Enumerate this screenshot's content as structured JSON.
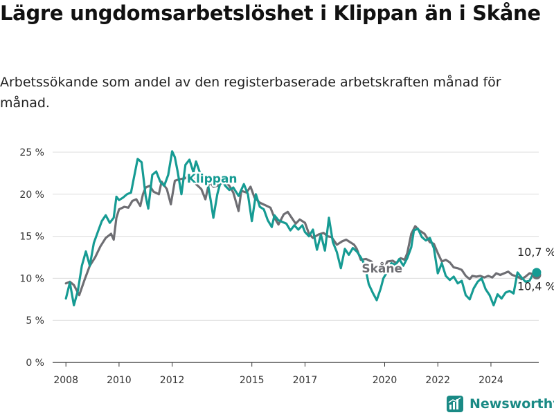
{
  "title": "Lägre ungdomsarbetslöshet i Klippan än i Skåne",
  "subtitle": "Arbetssökande som andel av den registerbaserade arbetskraften månad för månad.",
  "brand": {
    "name": "Newsworthy",
    "icon": "newsworthy-logo-icon",
    "color": "#1a8a85"
  },
  "chart_data": {
    "type": "line",
    "title": "Lägre ungdomsarbetslöshet i Klippan än i Skåne",
    "subtitle": "Arbetssökande som andel av den registerbaserade arbetskraften månad för månad.",
    "xlabel": "",
    "ylabel": "",
    "xlim": [
      2007.5,
      2025.8
    ],
    "ylim": [
      0,
      25
    ],
    "y_ticks": [
      0,
      5,
      10,
      15,
      20,
      25
    ],
    "y_tick_labels": [
      "0 %",
      "5 %",
      "10 %",
      "15 %",
      "20 %",
      "25 %"
    ],
    "x_ticks": [
      2008,
      2010,
      2012,
      2015,
      2017,
      2020,
      2022,
      2024
    ],
    "x_tick_labels": [
      "2008",
      "2010",
      "2012",
      "2015",
      "2017",
      "2020",
      "2022",
      "2024"
    ],
    "grid": true,
    "series": [
      {
        "name": "Skåne",
        "color": "#6e6e73",
        "end_label": "10,4 %",
        "points": [
          [
            2008.0,
            9.4
          ],
          [
            2008.15,
            9.6
          ],
          [
            2008.3,
            9.2
          ],
          [
            2008.5,
            8.0
          ],
          [
            2008.7,
            9.8
          ],
          [
            2008.9,
            11.5
          ],
          [
            2009.1,
            12.5
          ],
          [
            2009.3,
            13.8
          ],
          [
            2009.5,
            14.8
          ],
          [
            2009.7,
            15.3
          ],
          [
            2009.8,
            14.6
          ],
          [
            2009.9,
            17.2
          ],
          [
            2010.0,
            18.2
          ],
          [
            2010.2,
            18.5
          ],
          [
            2010.35,
            18.4
          ],
          [
            2010.5,
            19.2
          ],
          [
            2010.65,
            19.4
          ],
          [
            2010.8,
            18.6
          ],
          [
            2010.9,
            20.0
          ],
          [
            2011.0,
            20.8
          ],
          [
            2011.15,
            21.0
          ],
          [
            2011.3,
            20.3
          ],
          [
            2011.5,
            20.0
          ],
          [
            2011.6,
            21.5
          ],
          [
            2011.8,
            20.6
          ],
          [
            2011.95,
            18.8
          ],
          [
            2012.1,
            21.6
          ],
          [
            2012.3,
            21.8
          ],
          [
            2012.5,
            21.9
          ],
          [
            2012.65,
            22.4
          ],
          [
            2012.8,
            22.0
          ],
          [
            2012.9,
            21.2
          ],
          [
            2013.1,
            20.6
          ],
          [
            2013.25,
            19.4
          ],
          [
            2013.4,
            21.5
          ],
          [
            2013.55,
            20.9
          ],
          [
            2013.7,
            21.0
          ],
          [
            2013.85,
            21.3
          ],
          [
            2014.0,
            21.5
          ],
          [
            2014.15,
            21.0
          ],
          [
            2014.3,
            20.2
          ],
          [
            2014.5,
            18.0
          ],
          [
            2014.6,
            20.4
          ],
          [
            2014.8,
            20.2
          ],
          [
            2014.95,
            20.9
          ],
          [
            2015.1,
            19.6
          ],
          [
            2015.3,
            19.0
          ],
          [
            2015.5,
            18.7
          ],
          [
            2015.7,
            18.4
          ],
          [
            2015.85,
            17.2
          ],
          [
            2016.0,
            16.4
          ],
          [
            2016.2,
            17.6
          ],
          [
            2016.35,
            17.9
          ],
          [
            2016.5,
            17.2
          ],
          [
            2016.65,
            16.5
          ],
          [
            2016.8,
            17.0
          ],
          [
            2017.0,
            16.6
          ],
          [
            2017.15,
            15.3
          ],
          [
            2017.3,
            14.8
          ],
          [
            2017.5,
            15.2
          ],
          [
            2017.7,
            15.4
          ],
          [
            2017.85,
            15.0
          ],
          [
            2018.0,
            14.9
          ],
          [
            2018.2,
            14.0
          ],
          [
            2018.4,
            14.4
          ],
          [
            2018.55,
            14.6
          ],
          [
            2018.7,
            14.3
          ],
          [
            2018.85,
            14.0
          ],
          [
            2018.95,
            13.5
          ],
          [
            2019.1,
            12.2
          ],
          [
            2019.3,
            12.3
          ],
          [
            2019.5,
            12.0
          ],
          [
            2019.7,
            11.1
          ],
          [
            2019.85,
            11.2
          ],
          [
            2019.95,
            11.0
          ],
          [
            2020.1,
            12.0
          ],
          [
            2020.3,
            12.1
          ],
          [
            2020.45,
            11.8
          ],
          [
            2020.6,
            12.4
          ],
          [
            2020.75,
            12.2
          ],
          [
            2020.85,
            13.0
          ],
          [
            2021.0,
            15.3
          ],
          [
            2021.15,
            16.2
          ],
          [
            2021.3,
            15.7
          ],
          [
            2021.5,
            15.3
          ],
          [
            2021.7,
            14.3
          ],
          [
            2021.85,
            14.1
          ],
          [
            2022.0,
            13.0
          ],
          [
            2022.15,
            12.0
          ],
          [
            2022.3,
            12.2
          ],
          [
            2022.45,
            11.9
          ],
          [
            2022.6,
            11.3
          ],
          [
            2022.75,
            11.2
          ],
          [
            2022.9,
            11.0
          ],
          [
            2023.05,
            10.3
          ],
          [
            2023.2,
            9.9
          ],
          [
            2023.3,
            10.3
          ],
          [
            2023.45,
            10.2
          ],
          [
            2023.6,
            10.3
          ],
          [
            2023.75,
            10.1
          ],
          [
            2023.9,
            10.3
          ],
          [
            2024.05,
            10.1
          ],
          [
            2024.2,
            10.6
          ],
          [
            2024.35,
            10.4
          ],
          [
            2024.5,
            10.6
          ],
          [
            2024.65,
            10.8
          ],
          [
            2024.8,
            10.4
          ],
          [
            2025.0,
            10.2
          ],
          [
            2025.15,
            9.9
          ],
          [
            2025.3,
            10.2
          ],
          [
            2025.45,
            10.6
          ],
          [
            2025.6,
            10.5
          ],
          [
            2025.72,
            10.4
          ]
        ]
      },
      {
        "name": "Klippan",
        "color": "#169b93",
        "end_label": "10,7 %",
        "points": [
          [
            2008.0,
            7.6
          ],
          [
            2008.15,
            9.5
          ],
          [
            2008.3,
            6.8
          ],
          [
            2008.45,
            8.5
          ],
          [
            2008.6,
            11.5
          ],
          [
            2008.75,
            13.2
          ],
          [
            2008.9,
            11.5
          ],
          [
            2009.05,
            14.2
          ],
          [
            2009.2,
            15.5
          ],
          [
            2009.35,
            16.8
          ],
          [
            2009.5,
            17.5
          ],
          [
            2009.65,
            16.6
          ],
          [
            2009.8,
            17.2
          ],
          [
            2009.9,
            19.7
          ],
          [
            2010.0,
            19.3
          ],
          [
            2010.15,
            19.6
          ],
          [
            2010.3,
            20.0
          ],
          [
            2010.45,
            20.2
          ],
          [
            2010.55,
            21.8
          ],
          [
            2010.7,
            24.2
          ],
          [
            2010.85,
            23.8
          ],
          [
            2011.0,
            19.8
          ],
          [
            2011.1,
            18.3
          ],
          [
            2011.25,
            22.3
          ],
          [
            2011.4,
            22.7
          ],
          [
            2011.55,
            21.5
          ],
          [
            2011.7,
            21.0
          ],
          [
            2011.85,
            22.3
          ],
          [
            2012.0,
            25.1
          ],
          [
            2012.1,
            24.4
          ],
          [
            2012.2,
            22.8
          ],
          [
            2012.35,
            20.0
          ],
          [
            2012.5,
            23.5
          ],
          [
            2012.65,
            24.1
          ],
          [
            2012.8,
            22.6
          ],
          [
            2012.9,
            23.9
          ],
          [
            2013.05,
            22.5
          ],
          [
            2013.15,
            21.6
          ],
          [
            2013.3,
            22.0
          ],
          [
            2013.45,
            19.3
          ],
          [
            2013.55,
            17.2
          ],
          [
            2013.7,
            20.0
          ],
          [
            2013.85,
            21.8
          ],
          [
            2014.0,
            21.0
          ],
          [
            2014.15,
            20.5
          ],
          [
            2014.3,
            20.8
          ],
          [
            2014.5,
            19.8
          ],
          [
            2014.7,
            21.2
          ],
          [
            2014.85,
            20.0
          ],
          [
            2015.0,
            16.8
          ],
          [
            2015.15,
            20.0
          ],
          [
            2015.3,
            18.5
          ],
          [
            2015.45,
            18.2
          ],
          [
            2015.6,
            16.9
          ],
          [
            2015.75,
            16.1
          ],
          [
            2015.85,
            17.5
          ],
          [
            2016.0,
            16.9
          ],
          [
            2016.15,
            16.7
          ],
          [
            2016.3,
            16.5
          ],
          [
            2016.45,
            15.7
          ],
          [
            2016.6,
            16.3
          ],
          [
            2016.75,
            15.8
          ],
          [
            2016.9,
            16.3
          ],
          [
            2017.0,
            15.5
          ],
          [
            2017.15,
            15.0
          ],
          [
            2017.3,
            15.8
          ],
          [
            2017.45,
            13.4
          ],
          [
            2017.6,
            15.2
          ],
          [
            2017.75,
            13.3
          ],
          [
            2017.9,
            17.2
          ],
          [
            2018.05,
            14.3
          ],
          [
            2018.2,
            13.1
          ],
          [
            2018.35,
            11.2
          ],
          [
            2018.5,
            13.5
          ],
          [
            2018.65,
            12.8
          ],
          [
            2018.8,
            13.6
          ],
          [
            2018.95,
            13.2
          ],
          [
            2019.1,
            12.5
          ],
          [
            2019.25,
            11.6
          ],
          [
            2019.4,
            9.3
          ],
          [
            2019.55,
            8.3
          ],
          [
            2019.7,
            7.4
          ],
          [
            2019.85,
            8.8
          ],
          [
            2019.95,
            10.0
          ],
          [
            2020.1,
            10.8
          ],
          [
            2020.25,
            11.8
          ],
          [
            2020.4,
            11.6
          ],
          [
            2020.55,
            12.3
          ],
          [
            2020.7,
            11.5
          ],
          [
            2020.85,
            12.4
          ],
          [
            2021.0,
            13.7
          ],
          [
            2021.1,
            15.7
          ],
          [
            2021.25,
            15.9
          ],
          [
            2021.4,
            14.9
          ],
          [
            2021.55,
            14.5
          ],
          [
            2021.7,
            14.8
          ],
          [
            2021.85,
            13.6
          ],
          [
            2022.0,
            10.6
          ],
          [
            2022.15,
            11.8
          ],
          [
            2022.3,
            10.3
          ],
          [
            2022.45,
            9.8
          ],
          [
            2022.6,
            10.2
          ],
          [
            2022.75,
            9.4
          ],
          [
            2022.9,
            9.7
          ],
          [
            2023.05,
            8.0
          ],
          [
            2023.2,
            7.5
          ],
          [
            2023.35,
            8.8
          ],
          [
            2023.5,
            9.6
          ],
          [
            2023.65,
            10.0
          ],
          [
            2023.8,
            8.7
          ],
          [
            2023.95,
            8.0
          ],
          [
            2024.1,
            6.8
          ],
          [
            2024.25,
            8.1
          ],
          [
            2024.4,
            7.6
          ],
          [
            2024.55,
            8.3
          ],
          [
            2024.7,
            8.5
          ],
          [
            2024.85,
            8.2
          ],
          [
            2025.0,
            10.7
          ],
          [
            2025.15,
            10.1
          ],
          [
            2025.3,
            9.6
          ],
          [
            2025.45,
            9.7
          ],
          [
            2025.6,
            10.6
          ],
          [
            2025.72,
            10.7
          ]
        ]
      }
    ],
    "annotations": [
      {
        "text": "Klippan",
        "series": "Klippan",
        "anchor": [
          2013.5,
          21.4
        ]
      },
      {
        "text": "Skåne",
        "series": "Skåne",
        "anchor": [
          2019.9,
          10.7
        ]
      }
    ]
  }
}
